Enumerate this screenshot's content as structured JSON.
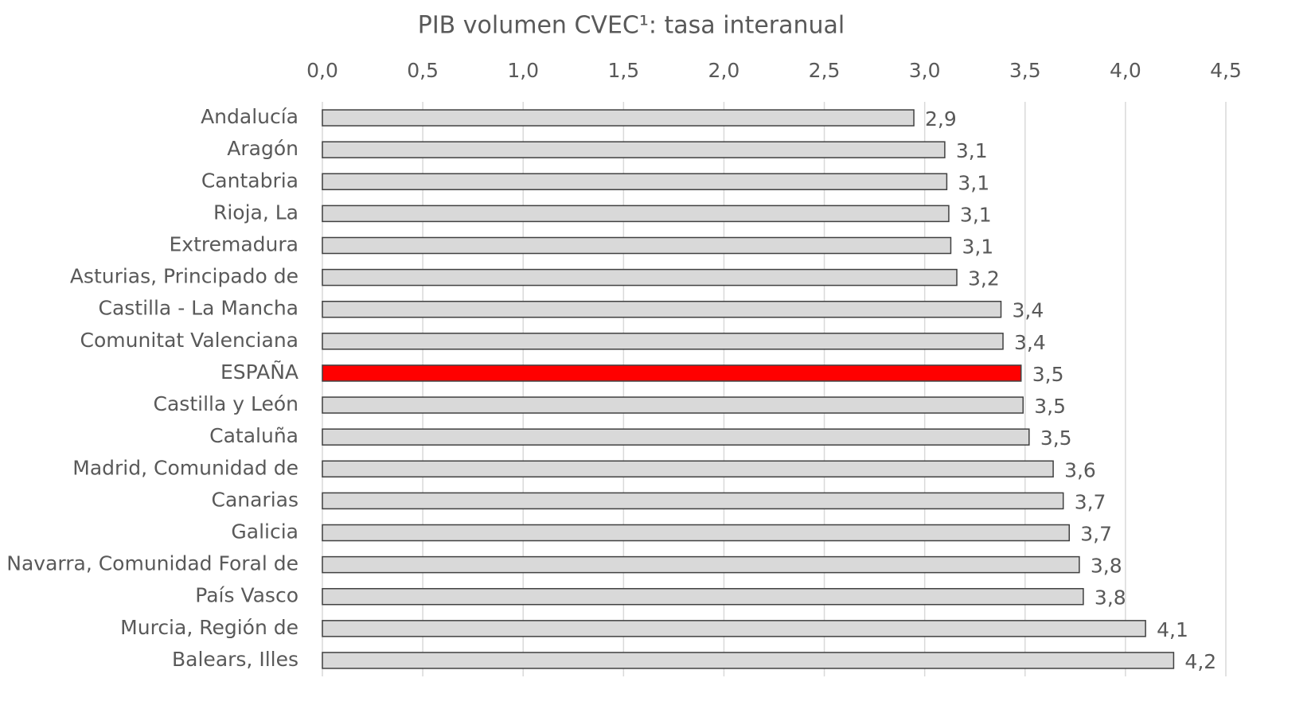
{
  "chart_data": {
    "type": "barh",
    "title": "PIB volumen CVEC¹: tasa interanual",
    "categories": [
      "Andalucía",
      "Aragón",
      "Cantabria",
      "Rioja, La",
      "Extremadura",
      "Asturias, Principado de",
      "Castilla - La Mancha",
      "Comunitat Valenciana",
      "ESPAÑA",
      "Castilla y León",
      "Cataluña",
      "Madrid, Comunidad de",
      "Canarias",
      "Galicia",
      "Navarra, Comunidad Foral de",
      "País Vasco",
      "Murcia, Región de",
      "Balears, Illes"
    ],
    "values": [
      2.946,
      3.1,
      3.11,
      3.12,
      3.13,
      3.16,
      3.38,
      3.39,
      3.48,
      3.49,
      3.52,
      3.64,
      3.69,
      3.72,
      3.77,
      3.79,
      4.1,
      4.24
    ],
    "value_labels": [
      "2,9",
      "3,1",
      "3,1",
      "3,1",
      "3,1",
      "3,2",
      "3,4",
      "3,4",
      "3,5",
      "3,5",
      "3,5",
      "3,6",
      "3,7",
      "3,7",
      "3,8",
      "3,8",
      "4,1",
      "4,2"
    ],
    "colors": [
      "#d9d9d9",
      "#d9d9d9",
      "#d9d9d9",
      "#d9d9d9",
      "#d9d9d9",
      "#d9d9d9",
      "#d9d9d9",
      "#d9d9d9",
      "#ff0000",
      "#d9d9d9",
      "#d9d9d9",
      "#d9d9d9",
      "#d9d9d9",
      "#d9d9d9",
      "#d9d9d9",
      "#d9d9d9",
      "#d9d9d9",
      "#d9d9d9"
    ],
    "xlim": [
      0,
      4.5
    ],
    "xticks": [
      {
        "value": 0,
        "label": "0,0"
      },
      {
        "value": 0.5,
        "label": "0,5"
      },
      {
        "value": 1,
        "label": "1,0"
      },
      {
        "value": 1.5,
        "label": "1,5"
      },
      {
        "value": 2,
        "label": "2,0"
      },
      {
        "value": 2.5,
        "label": "2,5"
      },
      {
        "value": 3,
        "label": "3,0"
      },
      {
        "value": 3.5,
        "label": "3,5"
      },
      {
        "value": 4,
        "label": "4,0"
      },
      {
        "value": 4.5,
        "label": "4,5"
      }
    ],
    "grid": true
  }
}
